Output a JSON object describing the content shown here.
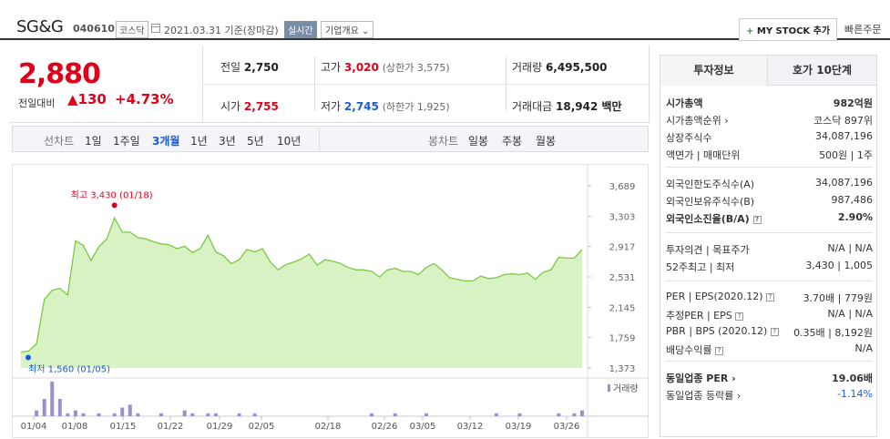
{
  "header": {
    "name": "SG&G",
    "code": "040610",
    "market": "코스닥",
    "date": "2021.03.31 기준(장마감)",
    "realtime": "실시간",
    "company_info": "기업개요 ⌄",
    "mystock": "MY STOCK 추가",
    "mystock_plus": "+",
    "quick_order": "빠른주문"
  },
  "price": {
    "current": "2,880",
    "change_label": "전일대비",
    "change_arrow": "▲",
    "change": "130",
    "change_pct": "+4.73%"
  },
  "quote": {
    "prev_label": "전일",
    "prev": "2,750",
    "high_label": "고가",
    "high": "3,020",
    "high_limit": "(상한가 3,575)",
    "volume_label": "거래량",
    "volume": "6,495,500",
    "open_label": "시가",
    "open": "2,755",
    "low_label": "저가",
    "low": "2,745",
    "low_limit": "(하한가 1,925)",
    "amount_label": "거래대금",
    "amount": "18,942 백만"
  },
  "tabs": {
    "line_label": "선차트",
    "line_periods": [
      "1일",
      "1주일",
      "3개월",
      "1년",
      "3년",
      "5년",
      "10년"
    ],
    "active_period": "3개월",
    "candle_label": "봉차트",
    "candle_periods": [
      "일봉",
      "주봉",
      "월봉"
    ]
  },
  "chart_data": {
    "type": "area",
    "title": "",
    "x_ticks": [
      "01/04",
      "01/08",
      "01/15",
      "01/22",
      "01/29",
      "02/05",
      "02/18",
      "02/26",
      "03/05",
      "03/12",
      "03/19",
      "03/26"
    ],
    "y_ticks": [
      "3,689",
      "3,303",
      "2,917",
      "2,531",
      "2,145",
      "1,759",
      "1,373"
    ],
    "ylim": [
      1373,
      3689
    ],
    "max_label": "최고 3,430 (01/18)",
    "min_label": "최저 1,560 (01/05)",
    "volume_label": "거래량",
    "color_line": "#7ac943",
    "color_fill": "#d8f2c4",
    "color_volume": "#9b8fd0",
    "price_series": [
      1575,
      1590,
      1680,
      2245,
      2360,
      2385,
      2300,
      2990,
      2930,
      2740,
      2915,
      3010,
      3280,
      3100,
      3100,
      3030,
      3015,
      2980,
      2950,
      2940,
      2890,
      2920,
      2840,
      2890,
      3060,
      2850,
      2800,
      2700,
      2750,
      2880,
      2850,
      2890,
      2720,
      2620,
      2690,
      2720,
      2760,
      2820,
      2680,
      2750,
      2730,
      2700,
      2650,
      2620,
      2620,
      2600,
      2530,
      2620,
      2640,
      2600,
      2600,
      2560,
      2650,
      2700,
      2620,
      2520,
      2500,
      2480,
      2480,
      2540,
      2510,
      2520,
      2560,
      2570,
      2560,
      2580,
      2500,
      2590,
      2620,
      2780,
      2770,
      2770,
      2880
    ],
    "volume_series": [
      0,
      0,
      2,
      6,
      12,
      6,
      1,
      2,
      1,
      0,
      1,
      0,
      1,
      3,
      4,
      1,
      0,
      0,
      1,
      0,
      0,
      2,
      1,
      0,
      1,
      1,
      0,
      0,
      1,
      0,
      1,
      0,
      0,
      0,
      0,
      0,
      0,
      0,
      0,
      0,
      0,
      0,
      0,
      0,
      0,
      1,
      0,
      0,
      1,
      0,
      0,
      0,
      1,
      0,
      0,
      0,
      0,
      0,
      0,
      0,
      0,
      1,
      0,
      0,
      1,
      0,
      0,
      0,
      0,
      1,
      0,
      1,
      2
    ]
  },
  "info": {
    "tab_invest": "투자정보",
    "tab_ask": "호가 10단계",
    "rows1": [
      {
        "label": "시가총액",
        "value": "982억원",
        "strong": true
      },
      {
        "label": "시가총액순위 ›",
        "value": "코스닥 897위"
      },
      {
        "label": "상장주식수",
        "value": "34,087,196"
      },
      {
        "label": "액면가 | 매매단위",
        "value": "500원 | 1주"
      }
    ],
    "rows2": [
      {
        "label": "외국인한도주식수(A)",
        "value": "34,087,196"
      },
      {
        "label": "외국인보유주식수(B)",
        "value": "987,486"
      },
      {
        "label": "외국인소진율(B/A)",
        "value": "2.90%",
        "strong": true,
        "q": true
      }
    ],
    "rows3": [
      {
        "label": "투자의견 | 목표주가",
        "value": "N/A | N/A"
      },
      {
        "label": "52주최고 | 최저",
        "value": "3,430 | 1,005"
      }
    ],
    "rows4": [
      {
        "label": "PER | EPS(2020.12)",
        "value": "3.70배 | 779원",
        "q": true
      },
      {
        "label": "추정PER | EPS",
        "value": "N/A | N/A",
        "q": true
      },
      {
        "label": "PBR | BPS (2020.12)",
        "value": "0.35배 | 8,192원",
        "q": true
      },
      {
        "label": "배당수익률",
        "value": "N/A",
        "q": true
      }
    ],
    "rows5": [
      {
        "label": "동일업종 PER ›",
        "value": "19.06배",
        "strong": true
      },
      {
        "label": "동일업종 등락률 ›",
        "value": "-1.14%",
        "blue": true
      }
    ]
  }
}
